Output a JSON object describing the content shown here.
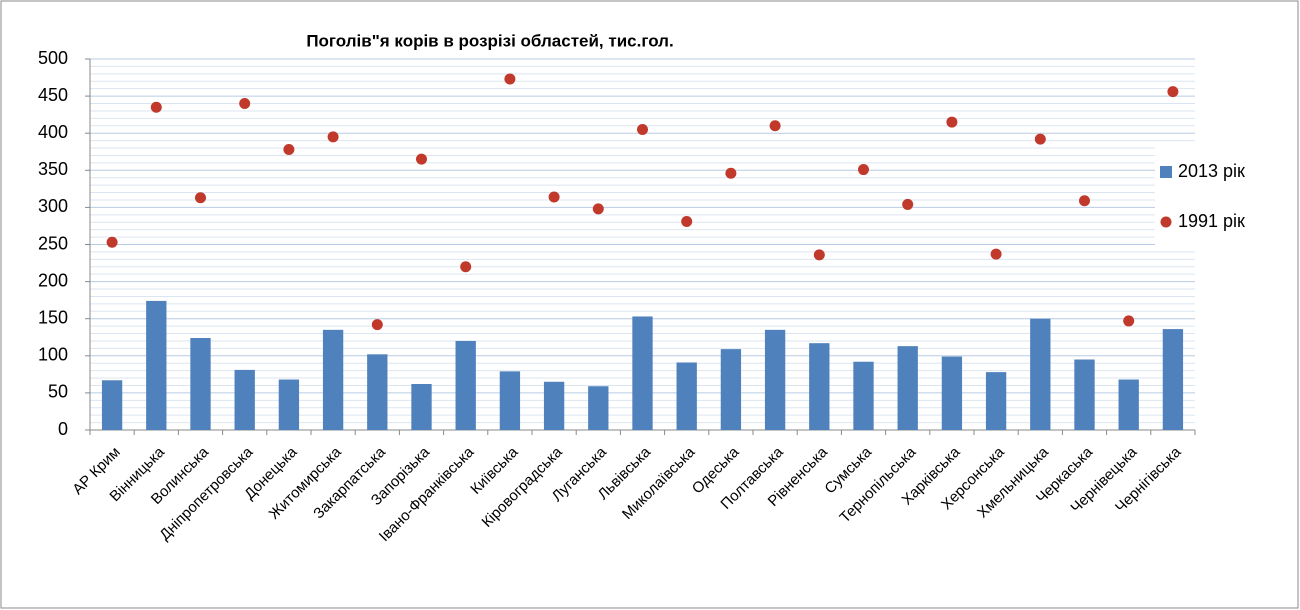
{
  "chart_data": {
    "type": "bar_scatter",
    "title": "Поголів\"я корів в розрізі областей, тис.гол.",
    "categories": [
      "АР Крим",
      "Вінницька",
      "Волинська",
      "Дніпропетровська",
      "Донецька",
      "Житомирська",
      "Закарпатська",
      "Запорізька",
      "Івано-Франківська",
      "Київська",
      "Кіровоградська",
      "Луганська",
      "Львівська",
      "Миколаївська",
      "Одеська",
      "Полтавська",
      "Рівненська",
      "Сумська",
      "Тернопільська",
      "Харківська",
      "Херсонська",
      "Хмельницька",
      "Черкаська",
      "Чернівецька",
      "Чернігівська"
    ],
    "series": [
      {
        "name": "2013 рік",
        "kind": "bar",
        "color": "#4f81bd",
        "values": [
          67,
          174,
          124,
          81,
          68,
          135,
          102,
          62,
          120,
          79,
          65,
          59,
          153,
          91,
          109,
          135,
          117,
          92,
          113,
          99,
          78,
          150,
          95,
          68,
          136
        ]
      },
      {
        "name": "1991 рік",
        "kind": "scatter",
        "color": "#c0392b",
        "values": [
          253,
          435,
          313,
          440,
          378,
          395,
          142,
          365,
          220,
          473,
          314,
          298,
          405,
          281,
          346,
          410,
          236,
          351,
          304,
          415,
          237,
          392,
          309,
          147,
          456
        ]
      }
    ],
    "ylim": [
      0,
      500
    ],
    "yticks": [
      0,
      50,
      100,
      150,
      200,
      250,
      300,
      350,
      400,
      450,
      500
    ],
    "grid": true,
    "legend": "right"
  }
}
